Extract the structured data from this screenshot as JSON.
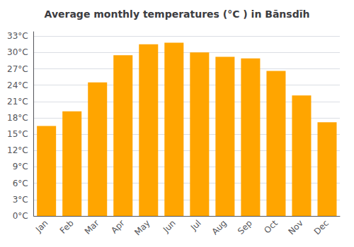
{
  "chart_data": {
    "type": "bar",
    "title": "Average monthly temperatures (°C ) in Bānsdīh",
    "categories": [
      "Jan",
      "Feb",
      "Mar",
      "Apr",
      "May",
      "Jun",
      "Jul",
      "Aug",
      "Sep",
      "Oct",
      "Nov",
      "Dec"
    ],
    "values": [
      16.5,
      19.2,
      24.5,
      29.5,
      31.5,
      31.8,
      30.0,
      29.2,
      28.9,
      26.6,
      22.1,
      17.2
    ],
    "color": "#FFA500",
    "ylim": [
      0,
      33.8
    ],
    "yticks": [
      {
        "value": 0,
        "label": "0°C"
      },
      {
        "value": 3,
        "label": "3°C"
      },
      {
        "value": 6,
        "label": "6°C"
      },
      {
        "value": 9,
        "label": "9°C"
      },
      {
        "value": 12,
        "label": "12°C"
      },
      {
        "value": 15,
        "label": "15°C"
      },
      {
        "value": 18,
        "label": "18°C"
      },
      {
        "value": 21,
        "label": "21°C"
      },
      {
        "value": 24,
        "label": "24°C"
      },
      {
        "value": 27,
        "label": "27°C"
      },
      {
        "value": 30,
        "label": "30°C"
      },
      {
        "value": 33,
        "label": "33°C"
      }
    ],
    "grid": true
  }
}
